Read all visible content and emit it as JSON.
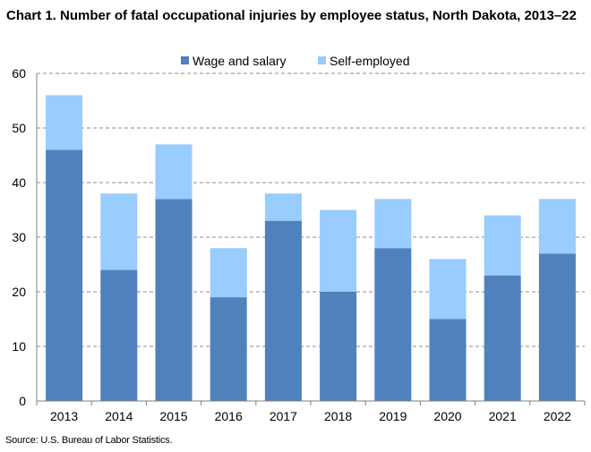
{
  "chart_data": {
    "type": "bar",
    "stacked": true,
    "title": "Chart 1. Number of fatal occupational injuries by employee status, North Dakota, 2013–22",
    "categories": [
      "2013",
      "2014",
      "2015",
      "2016",
      "2017",
      "2018",
      "2019",
      "2020",
      "2021",
      "2022"
    ],
    "series": [
      {
        "name": "Wage and salary",
        "color": "#4f81bd",
        "values": [
          46,
          24,
          37,
          19,
          33,
          20,
          28,
          15,
          23,
          27
        ]
      },
      {
        "name": "Self-employed",
        "color": "#99ccff",
        "values": [
          10,
          14,
          10,
          9,
          5,
          15,
          9,
          11,
          11,
          10
        ]
      }
    ],
    "ylim": [
      0,
      60
    ],
    "yticks": [
      0,
      10,
      20,
      30,
      40,
      50,
      60
    ],
    "grid": true,
    "legend_position": "top-center",
    "xlabel": "",
    "ylabel": ""
  },
  "source": "Source: U.S. Bureau of Labor Statistics."
}
